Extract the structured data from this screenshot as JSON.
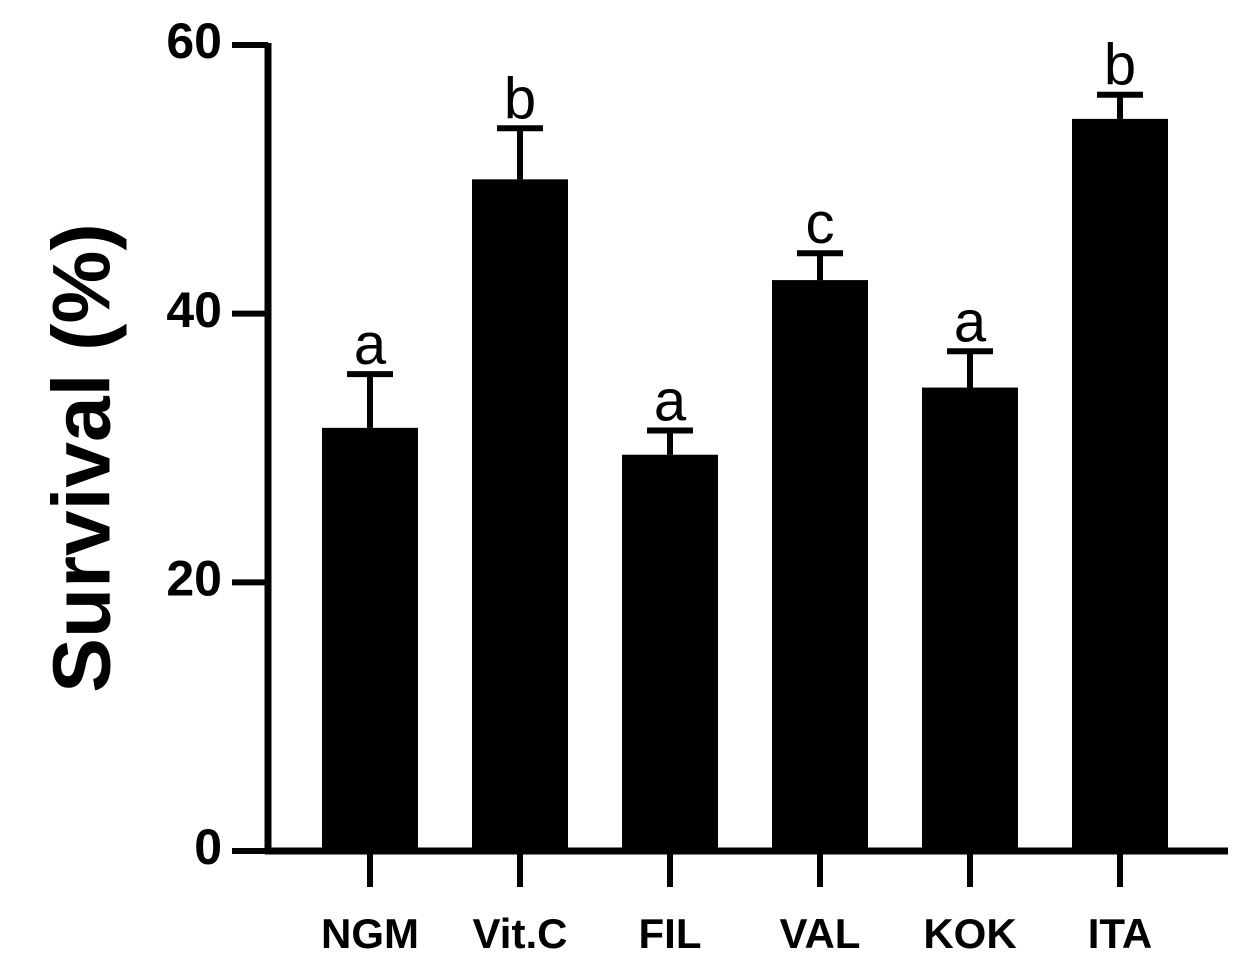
{
  "chart_data": {
    "type": "bar",
    "categories": [
      "NGM",
      "Vit.C",
      "FIL",
      "VAL",
      "KOK",
      "ITA"
    ],
    "values": [
      31.5,
      50.0,
      29.5,
      42.5,
      34.5,
      54.5
    ],
    "errors": [
      4.0,
      3.8,
      1.8,
      2.0,
      2.7,
      1.8
    ],
    "significance_labels": [
      "a",
      "b",
      "a",
      "c",
      "a",
      "b"
    ],
    "title": "",
    "xlabel": "",
    "ylabel": "Survival (%)",
    "ylim": [
      0,
      60
    ],
    "yticks": [
      "0",
      "20",
      "40",
      "60"
    ],
    "bar_color": "#000000",
    "grid": false,
    "legend": "none"
  }
}
